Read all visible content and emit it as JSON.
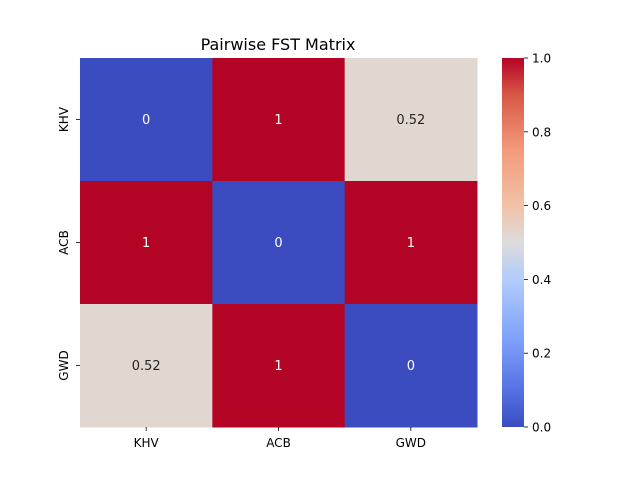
{
  "chart_data": {
    "type": "heatmap",
    "title": "Pairwise FST Matrix",
    "xlabel": "",
    "ylabel": "",
    "x_categories": [
      "KHV",
      "ACB",
      "GWD"
    ],
    "y_categories": [
      "KHV",
      "ACB",
      "GWD"
    ],
    "values": [
      [
        0,
        1,
        0.52
      ],
      [
        1,
        0,
        1
      ],
      [
        0.52,
        1,
        0
      ]
    ],
    "cell_labels": [
      [
        "0",
        "1",
        "0.52"
      ],
      [
        "1",
        "0",
        "1"
      ],
      [
        "0.52",
        "1",
        "0"
      ]
    ],
    "colormap": "coolwarm",
    "vmin": 0,
    "vmax": 1,
    "colorbar_ticks": [
      "0.0",
      "0.2",
      "0.4",
      "0.6",
      "0.8",
      "1.0"
    ],
    "colorbar_tick_values": [
      0,
      0.2,
      0.4,
      0.6,
      0.8,
      1.0
    ],
    "colors": {
      "low": "#3b4cc0",
      "mid": "#dddddd",
      "high": "#b40426"
    }
  }
}
